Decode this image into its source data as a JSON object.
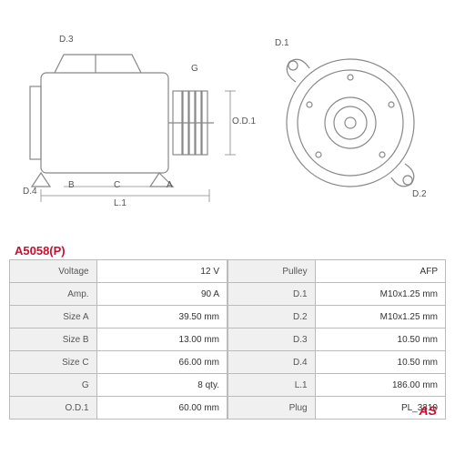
{
  "part_code": "A5058(P)",
  "logo": "AS",
  "side_labels": {
    "d3": "D.3",
    "g": "G",
    "od1": "O.D.1",
    "d4": "D.4",
    "b": "B",
    "c": "C",
    "a": "A",
    "l1": "L.1"
  },
  "front_labels": {
    "d1": "D.1",
    "d2": "D.2"
  },
  "table_left": {
    "columns": [
      "label",
      "value"
    ],
    "rows": [
      [
        "Voltage",
        "12 V"
      ],
      [
        "Amp.",
        "90 A"
      ],
      [
        "Size A",
        "39.50 mm"
      ],
      [
        "Size B",
        "13.00 mm"
      ],
      [
        "Size C",
        "66.00 mm"
      ],
      [
        "G",
        "8 qty."
      ],
      [
        "O.D.1",
        "60.00 mm"
      ]
    ]
  },
  "table_right": {
    "columns": [
      "label",
      "value"
    ],
    "rows": [
      [
        "Pulley",
        "AFP"
      ],
      [
        "D.1",
        "M10x1.25 mm"
      ],
      [
        "D.2",
        "M10x1.25 mm"
      ],
      [
        "D.3",
        "10.50 mm"
      ],
      [
        "D.4",
        "10.50 mm"
      ],
      [
        "L.1",
        "186.00 mm"
      ],
      [
        "Plug",
        "PL_3310"
      ]
    ]
  },
  "colors": {
    "accent": "#c8102e",
    "line": "#888888",
    "grid": "#bbbbbb",
    "label_bg": "#f0f0f0"
  }
}
